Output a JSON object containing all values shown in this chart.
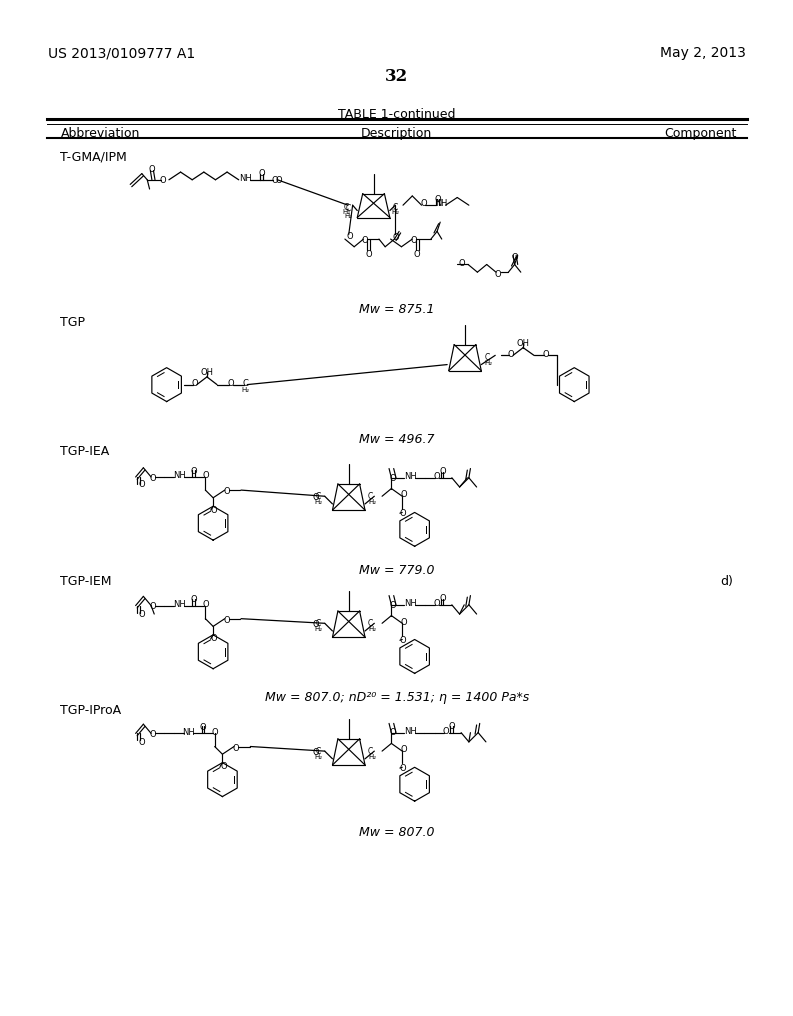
{
  "page_number": "32",
  "patent_left": "US 2013/0109777 A1",
  "patent_right": "May 2, 2013",
  "table_title": "TABLE 1-continued",
  "col_headers": [
    "Abbreviation",
    "Description",
    "Component"
  ],
  "background_color": "#ffffff",
  "rows": [
    {
      "abbreviation": "T-GMA/IPM",
      "mw": "Mw = 875.1",
      "component": ""
    },
    {
      "abbreviation": "TGP",
      "mw": "Mw = 496.7",
      "component": ""
    },
    {
      "abbreviation": "TGP-IEA",
      "mw": "Mw = 779.0",
      "component": ""
    },
    {
      "abbreviation": "TGP-IEM",
      "mw": "Mw = 807.0; nD²⁰ = 1.531; η = 1400 Pa*s",
      "component": "d)"
    },
    {
      "abbreviation": "TGP-IProA",
      "mw": "Mw = 807.0",
      "component": ""
    }
  ]
}
